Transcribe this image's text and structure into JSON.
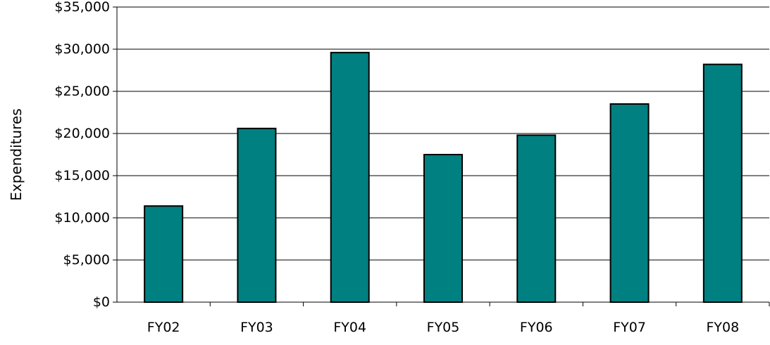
{
  "chart_data": {
    "type": "bar",
    "categories": [
      "FY02",
      "FY03",
      "FY04",
      "FY05",
      "FY06",
      "FY07",
      "FY08"
    ],
    "values": [
      11400,
      20600,
      29600,
      17500,
      19800,
      23500,
      28200
    ],
    "title": "",
    "xlabel": "",
    "ylabel": "Expenditures",
    "ylim": [
      0,
      35000
    ],
    "yticks": [
      0,
      5000,
      10000,
      15000,
      20000,
      25000,
      30000,
      35000
    ],
    "ytick_labels": [
      "$0",
      "$5,000",
      "$10,000",
      "$15,000",
      "$20,000",
      "$25,000",
      "$30,000",
      "$35,000"
    ],
    "grid": true,
    "bar_color": "#008080",
    "legend": "none"
  }
}
